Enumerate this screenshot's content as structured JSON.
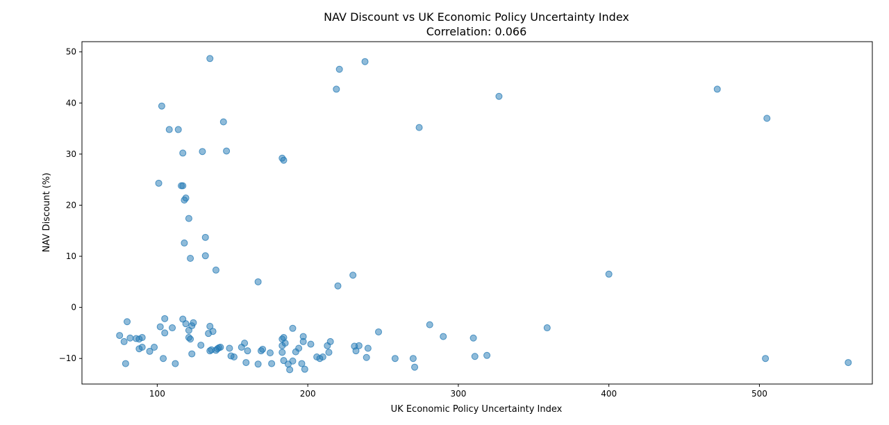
{
  "chart_data": {
    "type": "scatter",
    "title": "NAV Discount vs UK Economic Policy Uncertainty Index",
    "subtitle": "Correlation: 0.066",
    "xlabel": "UK Economic Policy Uncertainty Index",
    "ylabel": "NAV Discount (%)",
    "xlim": [
      50,
      575
    ],
    "ylim": [
      -15,
      52
    ],
    "xticks": [
      100,
      200,
      300,
      400,
      500
    ],
    "yticks": [
      -10,
      0,
      10,
      20,
      30,
      40,
      50
    ],
    "grid": false,
    "marker_color": "#1f77b4",
    "points": [
      [
        135,
        48.7
      ],
      [
        221,
        46.6
      ],
      [
        238,
        48.1
      ],
      [
        219,
        42.7
      ],
      [
        327,
        41.3
      ],
      [
        472,
        42.7
      ],
      [
        505,
        37.0
      ],
      [
        103,
        39.4
      ],
      [
        108,
        34.8
      ],
      [
        114,
        34.8
      ],
      [
        144,
        36.3
      ],
      [
        274,
        35.2
      ],
      [
        117,
        30.2
      ],
      [
        130,
        30.5
      ],
      [
        146,
        30.6
      ],
      [
        183,
        29.2
      ],
      [
        184,
        28.8
      ],
      [
        101,
        24.3
      ],
      [
        116,
        23.8
      ],
      [
        117,
        23.8
      ],
      [
        119,
        21.4
      ],
      [
        118,
        21.0
      ],
      [
        121,
        17.4
      ],
      [
        132,
        13.7
      ],
      [
        118,
        12.6
      ],
      [
        132,
        10.1
      ],
      [
        122,
        9.6
      ],
      [
        139,
        7.3
      ],
      [
        230,
        6.3
      ],
      [
        400,
        6.5
      ],
      [
        167,
        5.0
      ],
      [
        220,
        4.2
      ],
      [
        75,
        -5.5
      ],
      [
        78,
        -6.7
      ],
      [
        80,
        -2.8
      ],
      [
        82,
        -6.0
      ],
      [
        86,
        -6.1
      ],
      [
        88,
        -6.2
      ],
      [
        90,
        -5.9
      ],
      [
        88,
        -8.1
      ],
      [
        90,
        -7.8
      ],
      [
        95,
        -8.6
      ],
      [
        98,
        -7.8
      ],
      [
        104,
        -10.0
      ],
      [
        79,
        -11.0
      ],
      [
        102,
        -3.8
      ],
      [
        105,
        -2.2
      ],
      [
        105,
        -5.0
      ],
      [
        110,
        -4.0
      ],
      [
        112,
        -11.0
      ],
      [
        117,
        -2.3
      ],
      [
        119,
        -3.2
      ],
      [
        121,
        -4.5
      ],
      [
        121,
        -5.9
      ],
      [
        122,
        -6.2
      ],
      [
        123,
        -3.6
      ],
      [
        124,
        -3.0
      ],
      [
        123,
        -9.1
      ],
      [
        129,
        -7.4
      ],
      [
        134,
        -5.1
      ],
      [
        135,
        -3.7
      ],
      [
        135,
        -8.5
      ],
      [
        136,
        -8.3
      ],
      [
        137,
        -4.7
      ],
      [
        139,
        -8.4
      ],
      [
        140,
        -8.1
      ],
      [
        141,
        -7.9
      ],
      [
        142,
        -7.8
      ],
      [
        148,
        -8.0
      ],
      [
        149,
        -9.5
      ],
      [
        151,
        -9.7
      ],
      [
        156,
        -7.8
      ],
      [
        158,
        -7.0
      ],
      [
        159,
        -10.8
      ],
      [
        160,
        -8.5
      ],
      [
        167,
        -11.1
      ],
      [
        169,
        -8.5
      ],
      [
        170,
        -8.2
      ],
      [
        175,
        -8.9
      ],
      [
        176,
        -11.0
      ],
      [
        183,
        -6.2
      ],
      [
        183,
        -7.5
      ],
      [
        184,
        -5.9
      ],
      [
        183,
        -8.8
      ],
      [
        184,
        -10.4
      ],
      [
        185,
        -7.0
      ],
      [
        187,
        -11.1
      ],
      [
        188,
        -12.2
      ],
      [
        190,
        -10.5
      ],
      [
        190,
        -4.1
      ],
      [
        192,
        -8.7
      ],
      [
        194,
        -8.0
      ],
      [
        196,
        -11.0
      ],
      [
        197,
        -6.7
      ],
      [
        197,
        -5.7
      ],
      [
        198,
        -12.1
      ],
      [
        202,
        -7.2
      ],
      [
        206,
        -9.7
      ],
      [
        208,
        -10.0
      ],
      [
        210,
        -9.7
      ],
      [
        213,
        -7.5
      ],
      [
        215,
        -6.7
      ],
      [
        214,
        -8.8
      ],
      [
        231,
        -7.6
      ],
      [
        232,
        -8.5
      ],
      [
        234,
        -7.5
      ],
      [
        239,
        -9.8
      ],
      [
        240,
        -8.0
      ],
      [
        247,
        -4.8
      ],
      [
        258,
        -10.0
      ],
      [
        270,
        -10.0
      ],
      [
        271,
        -11.7
      ],
      [
        281,
        -3.4
      ],
      [
        290,
        -5.7
      ],
      [
        310,
        -6.0
      ],
      [
        311,
        -9.6
      ],
      [
        319,
        -9.4
      ],
      [
        359,
        -4.0
      ],
      [
        504,
        -10.0
      ],
      [
        559,
        -10.8
      ]
    ]
  }
}
